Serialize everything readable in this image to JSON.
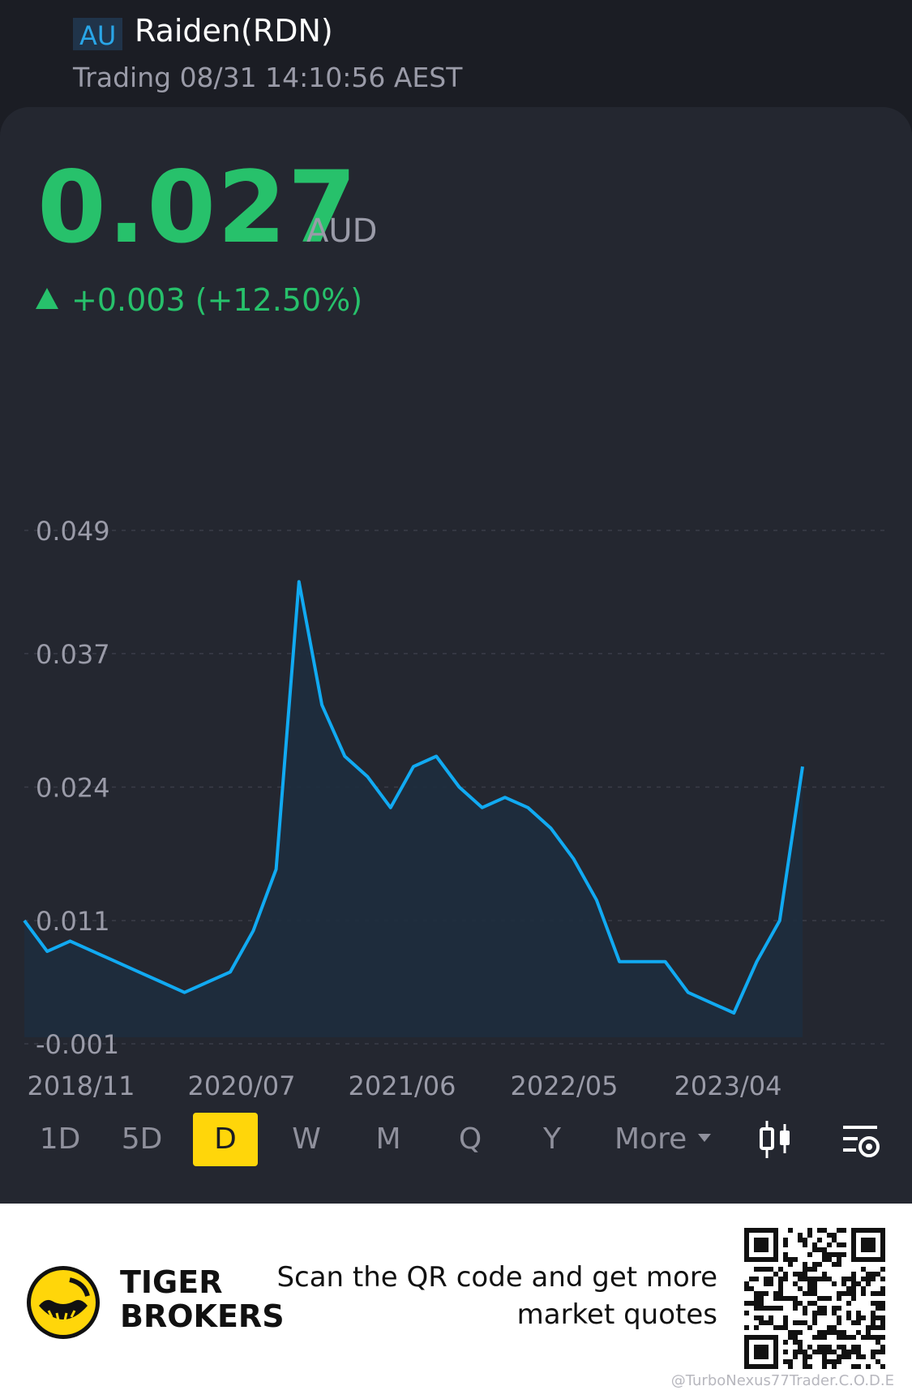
{
  "header": {
    "market": "AU",
    "name": "Raiden(RDN)",
    "status": "Trading 08/31 14:10:56 AEST"
  },
  "quote": {
    "price": "0.027",
    "currency": "AUD",
    "change": "+0.003 (+12.50%)",
    "color": "#27c16b"
  },
  "chart_data": {
    "type": "area",
    "line_color": "#11aaf2",
    "y_ticks": [
      "0.049",
      "0.037",
      "0.024",
      "0.011",
      "-0.001"
    ],
    "ylim": [
      -0.001,
      0.049
    ],
    "x_ticks": [
      "2018/11",
      "2020/07",
      "2021/06",
      "2022/05",
      "2023/04"
    ],
    "grid": true,
    "x": [
      "2018/11",
      "2019/01",
      "2019/03",
      "2019/05",
      "2019/07",
      "2019/09",
      "2019/11",
      "2020/01",
      "2020/03",
      "2020/05",
      "2020/06",
      "2020/07",
      "2020/08",
      "2020/09",
      "2020/10",
      "2020/11",
      "2020/12",
      "2021/02",
      "2021/04",
      "2021/06",
      "2021/08",
      "2021/10",
      "2021/12",
      "2022/02",
      "2022/04",
      "2022/05",
      "2022/07",
      "2022/09",
      "2022/11",
      "2023/01",
      "2023/03",
      "2023/04",
      "2023/06",
      "2023/07",
      "2023/08"
    ],
    "values": [
      0.011,
      0.008,
      0.009,
      0.008,
      0.007,
      0.006,
      0.005,
      0.004,
      0.005,
      0.006,
      0.01,
      0.016,
      0.044,
      0.032,
      0.027,
      0.025,
      0.022,
      0.026,
      0.027,
      0.024,
      0.022,
      0.023,
      0.022,
      0.02,
      0.017,
      0.013,
      0.007,
      0.007,
      0.007,
      0.004,
      0.003,
      0.002,
      0.007,
      0.011,
      0.026
    ]
  },
  "periods": [
    "1D",
    "5D",
    "D",
    "W",
    "M",
    "Q",
    "Y"
  ],
  "active_period": "D",
  "more_label": "More",
  "icons": {
    "chart_type": "candlestick-icon",
    "settings": "chart-settings-icon"
  },
  "footer": {
    "brand_line1": "TIGER",
    "brand_line2": "BROKERS",
    "promo_line1": "Scan the QR code and get more",
    "promo_line2": "market quotes",
    "credit": "@TurboNexus77Trader.C.O.D.E"
  }
}
